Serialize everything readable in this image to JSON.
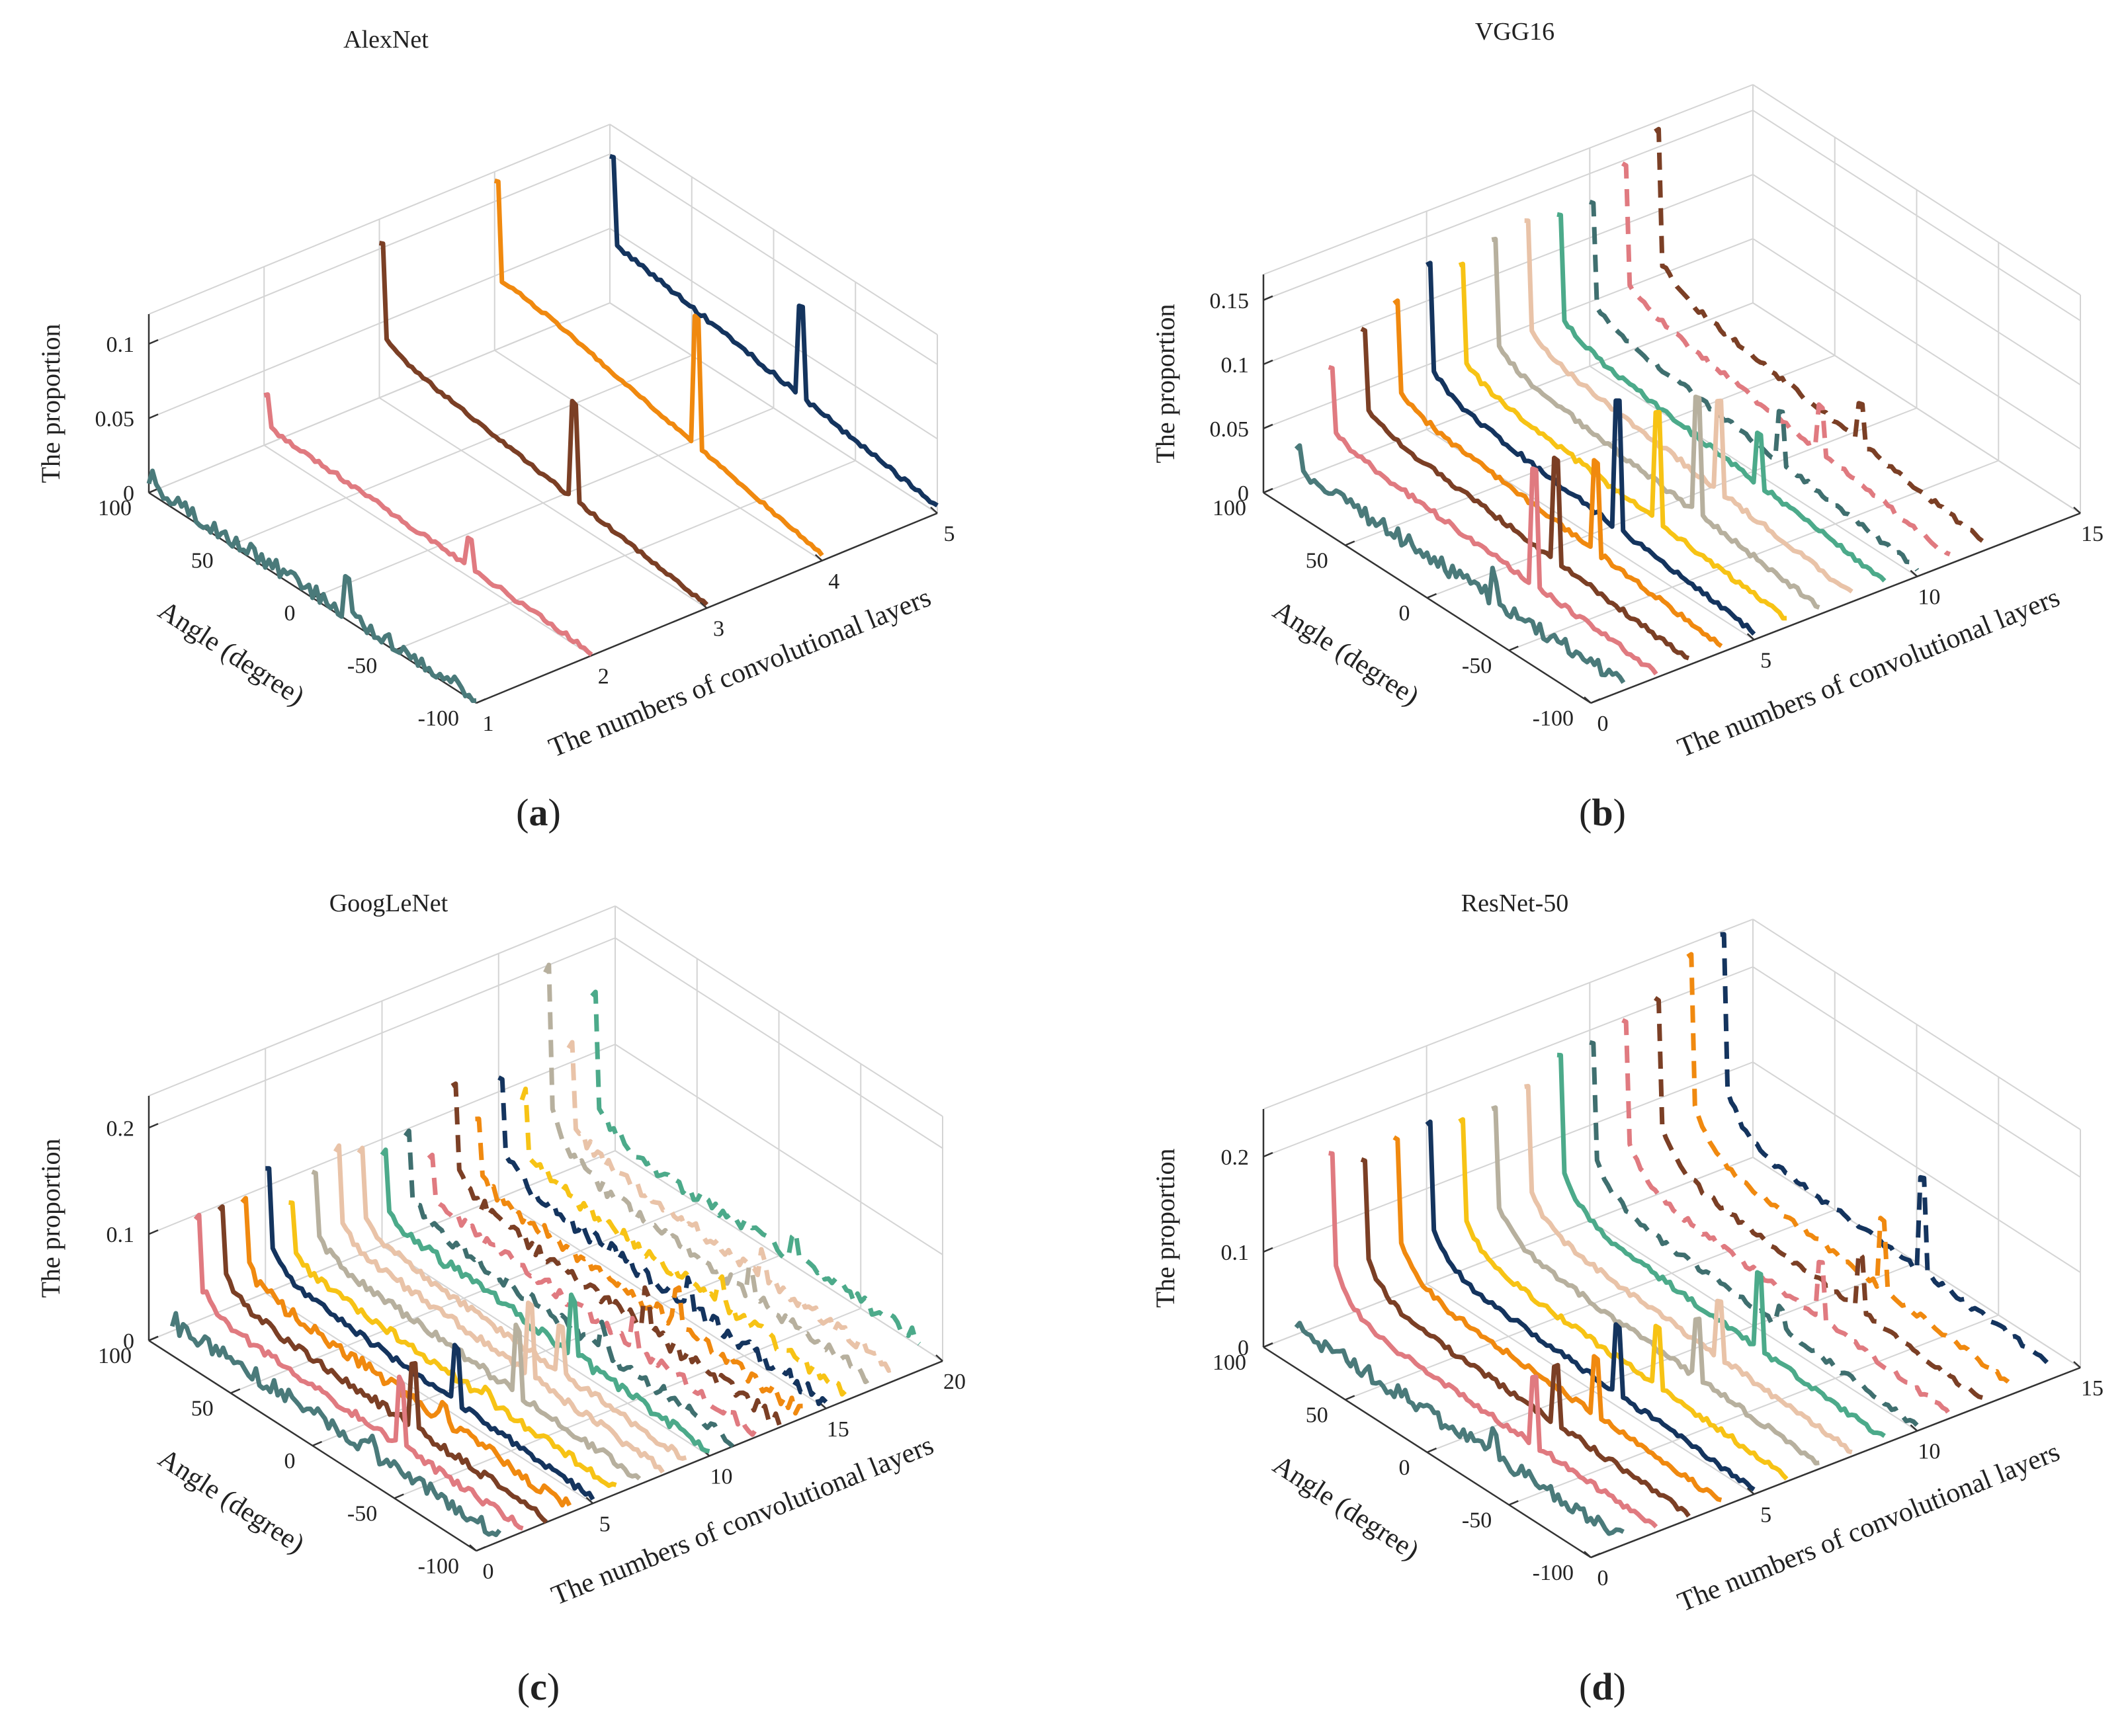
{
  "chart_data": [
    {
      "id": "a",
      "type": "line",
      "title": "AlexNet",
      "caption_letter": "a",
      "zlabel": "The proportion",
      "ylabel": "Angle (degree)",
      "xlabel": "The numbers of convolutional layers",
      "z_ticks": [
        "0",
        "0.05",
        "0.1"
      ],
      "z_tick_values": [
        0,
        0.05,
        0.1
      ],
      "zlim": [
        0,
        0.12
      ],
      "angle_ticks": [
        "100",
        "50",
        "0",
        "-50",
        "-100"
      ],
      "angle_tick_values": [
        100,
        50,
        0,
        -50,
        -100
      ],
      "anglelim": [
        -100,
        100
      ],
      "layer_ticks": [
        "1",
        "2",
        "3",
        "4",
        "5"
      ],
      "layer_tick_values": [
        1,
        2,
        3,
        4,
        5
      ],
      "layerlim": [
        1,
        5
      ],
      "series": [
        {
          "name": "Layer 1",
          "layer": 1,
          "color": "#4a7a7a",
          "dash": false,
          "start": 0.012,
          "mid": 0.004,
          "end": 0.003,
          "peak": 0.025,
          "noise": 0.006
        },
        {
          "name": "Layer 2",
          "layer": 2,
          "color": "#e07a80",
          "dash": false,
          "start": 0.035,
          "mid": 0.012,
          "end": 0.002,
          "peak": 0.018,
          "noise": 0.0015
        },
        {
          "name": "Layer 3",
          "layer": 3,
          "color": "#7b3f25",
          "dash": false,
          "start": 0.105,
          "mid": 0.03,
          "end": 0.002,
          "peak": 0.065,
          "noise": 0.001
        },
        {
          "name": "Layer 4",
          "layer": 4,
          "color": "#f0890f",
          "dash": false,
          "start": 0.115,
          "mid": 0.045,
          "end": 0.004,
          "peak": 0.085,
          "noise": 0.001
        },
        {
          "name": "Layer 5",
          "layer": 5,
          "color": "#14345e",
          "dash": false,
          "start": 0.1,
          "mid": 0.035,
          "end": 0.004,
          "peak": 0.06,
          "noise": 0.0015
        }
      ]
    },
    {
      "id": "b",
      "type": "line",
      "title": "VGG16",
      "caption_letter": "b",
      "zlabel": "The proportion",
      "ylabel": "Angle (degree)",
      "xlabel": "The numbers of convolutional layers",
      "z_ticks": [
        "0",
        "0.05",
        "0.1",
        "0.15"
      ],
      "z_tick_values": [
        0,
        0.05,
        0.1,
        0.15
      ],
      "zlim": [
        0,
        0.17
      ],
      "angle_ticks": [
        "100",
        "50",
        "0",
        "-50",
        "-100"
      ],
      "angle_tick_values": [
        100,
        50,
        0,
        -50,
        -100
      ],
      "anglelim": [
        -100,
        100
      ],
      "layer_ticks": [
        "0",
        "5",
        "10",
        "15"
      ],
      "layer_tick_values": [
        0,
        5,
        10,
        15
      ],
      "layerlim": [
        0,
        15
      ],
      "series": [
        {
          "name": "Layer 1",
          "layer": 1,
          "color": "#4a7a7a",
          "dash": false,
          "start": 0.03,
          "mid": 0.008,
          "end": 0.005,
          "peak": 0.02,
          "noise": 0.006
        },
        {
          "name": "Layer 2",
          "layer": 2,
          "color": "#e07a80",
          "dash": false,
          "start": 0.08,
          "mid": 0.02,
          "end": 0.004,
          "peak": 0.09,
          "noise": 0.002
        },
        {
          "name": "Layer 3",
          "layer": 3,
          "color": "#7b3f25",
          "dash": false,
          "start": 0.1,
          "mid": 0.025,
          "end": 0.004,
          "peak": 0.08,
          "noise": 0.002
        },
        {
          "name": "Layer 4",
          "layer": 4,
          "color": "#f0890f",
          "dash": false,
          "start": 0.11,
          "mid": 0.028,
          "end": 0.005,
          "peak": 0.07,
          "noise": 0.002
        },
        {
          "name": "Layer 5",
          "layer": 5,
          "color": "#14345e",
          "dash": false,
          "start": 0.13,
          "mid": 0.03,
          "end": 0.006,
          "peak": 0.1,
          "noise": 0.002
        },
        {
          "name": "Layer 6",
          "layer": 6,
          "color": "#f7c315",
          "dash": false,
          "start": 0.12,
          "mid": 0.03,
          "end": 0.006,
          "peak": 0.085,
          "noise": 0.002
        },
        {
          "name": "Layer 7",
          "layer": 7,
          "color": "#b7b09e",
          "dash": false,
          "start": 0.13,
          "mid": 0.032,
          "end": 0.006,
          "peak": 0.09,
          "noise": 0.002
        },
        {
          "name": "Layer 8",
          "layer": 8,
          "color": "#e9c3a8",
          "dash": false,
          "start": 0.135,
          "mid": 0.034,
          "end": 0.006,
          "peak": 0.07,
          "noise": 0.002
        },
        {
          "name": "Layer 9",
          "layer": 9,
          "color": "#4caa8a",
          "dash": false,
          "start": 0.13,
          "mid": 0.033,
          "end": 0.006,
          "peak": 0.04,
          "noise": 0.002
        },
        {
          "name": "Layer 10",
          "layer": 10,
          "color": "#3f6f6f",
          "dash": true,
          "start": 0.13,
          "mid": 0.035,
          "end": 0.006,
          "peak": 0.04,
          "noise": 0.002
        },
        {
          "name": "Layer 11",
          "layer": 11,
          "color": "#e07a80",
          "dash": true,
          "start": 0.15,
          "mid": 0.04,
          "end": 0.006,
          "peak": 0.035,
          "noise": 0.002
        },
        {
          "name": "Layer 12",
          "layer": 12,
          "color": "#7b3f25",
          "dash": true,
          "start": 0.165,
          "mid": 0.042,
          "end": 0.008,
          "peak": 0.03,
          "noise": 0.002
        }
      ]
    },
    {
      "id": "c",
      "type": "line",
      "title": "GoogLeNet",
      "caption_letter": "c",
      "zlabel": "The proportion",
      "ylabel": "Angle (degree)",
      "xlabel": "The numbers of convolutional layers",
      "z_ticks": [
        "0",
        "0.1",
        "0.2"
      ],
      "z_tick_values": [
        0,
        0.1,
        0.2
      ],
      "zlim": [
        0,
        0.23
      ],
      "angle_ticks": [
        "100",
        "50",
        "0",
        "-50",
        "-100"
      ],
      "angle_tick_values": [
        100,
        50,
        0,
        -50,
        -100
      ],
      "anglelim": [
        -100,
        100
      ],
      "layer_ticks": [
        "0",
        "5",
        "10",
        "15",
        "20"
      ],
      "layer_tick_values": [
        0,
        5,
        10,
        15,
        20
      ],
      "layerlim": [
        0,
        20
      ],
      "series": [
        {
          "name": "Layer 1",
          "layer": 1,
          "color": "#4a7a7a",
          "dash": false,
          "start": 0.012,
          "mid": 0.008,
          "end": 0.006,
          "peak": 0.015,
          "noise": 0.008
        },
        {
          "name": "Layer 2",
          "layer": 2,
          "color": "#e07a80",
          "dash": false,
          "start": 0.1,
          "mid": 0.012,
          "end": 0.004,
          "peak": 0.06,
          "noise": 0.004
        },
        {
          "name": "Layer 3",
          "layer": 3,
          "color": "#7b3f25",
          "dash": false,
          "start": 0.1,
          "mid": 0.015,
          "end": 0.004,
          "peak": 0.06,
          "noise": 0.004
        },
        {
          "name": "Layer 4",
          "layer": 4,
          "color": "#f0890f",
          "dash": false,
          "start": 0.1,
          "mid": 0.018,
          "end": 0.005,
          "peak": 0.01,
          "noise": 0.006
        },
        {
          "name": "Layer 5",
          "layer": 5,
          "color": "#14345e",
          "dash": false,
          "start": 0.12,
          "mid": 0.02,
          "end": 0.005,
          "peak": 0.05,
          "noise": 0.003
        },
        {
          "name": "Layer 6",
          "layer": 6,
          "color": "#f7c315",
          "dash": false,
          "start": 0.08,
          "mid": 0.018,
          "end": 0.005,
          "peak": 0.01,
          "noise": 0.004
        },
        {
          "name": "Layer 7",
          "layer": 7,
          "color": "#b7b09e",
          "dash": false,
          "start": 0.1,
          "mid": 0.02,
          "end": 0.005,
          "peak": 0.06,
          "noise": 0.004
        },
        {
          "name": "Layer 8",
          "layer": 8,
          "color": "#e9c3a8",
          "dash": false,
          "start": 0.11,
          "mid": 0.022,
          "end": 0.005,
          "peak": 0.07,
          "noise": 0.004
        },
        {
          "name": "Layer 9",
          "layer": 9,
          "color": "#e9c3a8",
          "dash": false,
          "start": 0.1,
          "mid": 0.02,
          "end": 0.005,
          "peak": 0.04,
          "noise": 0.004
        },
        {
          "name": "Layer 10",
          "layer": 10,
          "color": "#4caa8a",
          "dash": false,
          "start": 0.09,
          "mid": 0.022,
          "end": 0.005,
          "peak": 0.05,
          "noise": 0.005
        },
        {
          "name": "Layer 11",
          "layer": 11,
          "color": "#3f6f6f",
          "dash": true,
          "start": 0.1,
          "mid": 0.02,
          "end": 0.005,
          "peak": 0.02,
          "noise": 0.006
        },
        {
          "name": "Layer 12",
          "layer": 12,
          "color": "#e07a80",
          "dash": true,
          "start": 0.07,
          "mid": 0.02,
          "end": 0.005,
          "peak": 0.02,
          "noise": 0.006
        },
        {
          "name": "Layer 13",
          "layer": 13,
          "color": "#7b3f25",
          "dash": true,
          "start": 0.13,
          "mid": 0.022,
          "end": 0.005,
          "peak": 0.03,
          "noise": 0.007
        },
        {
          "name": "Layer 14",
          "layer": 14,
          "color": "#f0890f",
          "dash": true,
          "start": 0.09,
          "mid": 0.02,
          "end": 0.005,
          "peak": 0.03,
          "noise": 0.007
        },
        {
          "name": "Layer 15",
          "layer": 15,
          "color": "#14345e",
          "dash": true,
          "start": 0.12,
          "mid": 0.022,
          "end": 0.005,
          "peak": 0.02,
          "noise": 0.007
        },
        {
          "name": "Layer 16",
          "layer": 16,
          "color": "#f7c315",
          "dash": true,
          "start": 0.09,
          "mid": 0.02,
          "end": 0.005,
          "peak": 0.02,
          "noise": 0.007
        },
        {
          "name": "Layer 17",
          "layer": 17,
          "color": "#b7b09e",
          "dash": true,
          "start": 0.2,
          "mid": 0.025,
          "end": 0.008,
          "peak": 0.02,
          "noise": 0.006
        },
        {
          "name": "Layer 18",
          "layer": 18,
          "color": "#e9c3a8",
          "dash": true,
          "start": 0.12,
          "mid": 0.025,
          "end": 0.01,
          "peak": 0.02,
          "noise": 0.006
        },
        {
          "name": "Layer 19",
          "layer": 19,
          "color": "#4caa8a",
          "dash": true,
          "start": 0.16,
          "mid": 0.03,
          "end": 0.03,
          "peak": 0.02,
          "noise": 0.006
        }
      ]
    },
    {
      "id": "d",
      "type": "line",
      "title": "ResNet-50",
      "caption_letter": "d",
      "zlabel": "The proportion",
      "ylabel": "Angle (degree)",
      "xlabel": "The numbers of convolutional layers",
      "z_ticks": [
        "0",
        "0.1",
        "0.2"
      ],
      "z_tick_values": [
        0,
        0.1,
        0.2
      ],
      "zlim": [
        0,
        0.25
      ],
      "angle_ticks": [
        "100",
        "50",
        "0",
        "-50",
        "-100"
      ],
      "angle_tick_values": [
        100,
        50,
        0,
        -50,
        -100
      ],
      "anglelim": [
        -100,
        100
      ],
      "layer_ticks": [
        "0",
        "5",
        "10",
        "15"
      ],
      "layer_tick_values": [
        0,
        5,
        10,
        15
      ],
      "layerlim": [
        0,
        15
      ],
      "series": [
        {
          "name": "Layer 1",
          "layer": 1,
          "color": "#4a7a7a",
          "dash": false,
          "start": 0.015,
          "mid": 0.008,
          "end": 0.006,
          "peak": 0.03,
          "noise": 0.008
        },
        {
          "name": "Layer 2",
          "layer": 2,
          "color": "#e07a80",
          "dash": false,
          "start": 0.18,
          "mid": 0.015,
          "end": 0.005,
          "peak": 0.07,
          "noise": 0.003
        },
        {
          "name": "Layer 3",
          "layer": 3,
          "color": "#7b3f25",
          "dash": false,
          "start": 0.16,
          "mid": 0.018,
          "end": 0.005,
          "peak": 0.06,
          "noise": 0.003
        },
        {
          "name": "Layer 4",
          "layer": 4,
          "color": "#f0890f",
          "dash": false,
          "start": 0.17,
          "mid": 0.02,
          "end": 0.005,
          "peak": 0.06,
          "noise": 0.003
        },
        {
          "name": "Layer 5",
          "layer": 5,
          "color": "#14345e",
          "dash": false,
          "start": 0.17,
          "mid": 0.022,
          "end": 0.005,
          "peak": 0.07,
          "noise": 0.003
        },
        {
          "name": "Layer 6",
          "layer": 6,
          "color": "#f7c315",
          "dash": false,
          "start": 0.16,
          "mid": 0.022,
          "end": 0.005,
          "peak": 0.06,
          "noise": 0.003
        },
        {
          "name": "Layer 7",
          "layer": 7,
          "color": "#b7b09e",
          "dash": false,
          "start": 0.16,
          "mid": 0.024,
          "end": 0.005,
          "peak": 0.06,
          "noise": 0.003
        },
        {
          "name": "Layer 8",
          "layer": 8,
          "color": "#e9c3a8",
          "dash": false,
          "start": 0.17,
          "mid": 0.025,
          "end": 0.005,
          "peak": 0.06,
          "noise": 0.003
        },
        {
          "name": "Layer 9",
          "layer": 9,
          "color": "#4caa8a",
          "dash": false,
          "start": 0.19,
          "mid": 0.026,
          "end": 0.005,
          "peak": 0.08,
          "noise": 0.003
        },
        {
          "name": "Layer 10",
          "layer": 10,
          "color": "#3f6f6f",
          "dash": true,
          "start": 0.19,
          "mid": 0.028,
          "end": 0.005,
          "peak": 0.02,
          "noise": 0.003
        },
        {
          "name": "Layer 11",
          "layer": 11,
          "color": "#e07a80",
          "dash": true,
          "start": 0.2,
          "mid": 0.03,
          "end": 0.005,
          "peak": 0.06,
          "noise": 0.003
        },
        {
          "name": "Layer 12",
          "layer": 12,
          "color": "#7b3f25",
          "dash": true,
          "start": 0.21,
          "mid": 0.032,
          "end": 0.006,
          "peak": 0.06,
          "noise": 0.003
        },
        {
          "name": "Layer 13",
          "layer": 13,
          "color": "#f0890f",
          "dash": true,
          "start": 0.24,
          "mid": 0.035,
          "end": 0.006,
          "peak": 0.07,
          "noise": 0.003
        },
        {
          "name": "Layer 14",
          "layer": 14,
          "color": "#14345e",
          "dash": true,
          "start": 0.25,
          "mid": 0.04,
          "end": 0.02,
          "peak": 0.1,
          "noise": 0.003
        }
      ]
    }
  ]
}
